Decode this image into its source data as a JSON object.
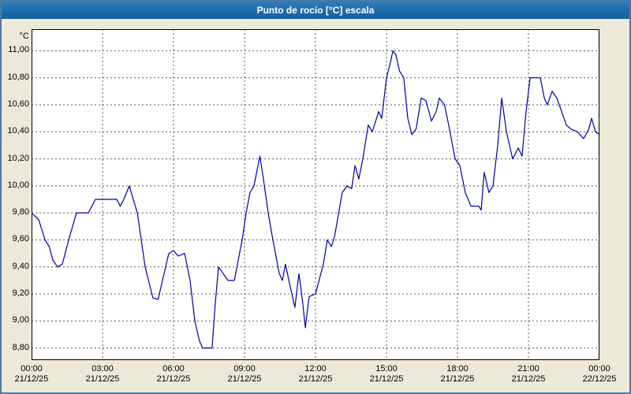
{
  "window": {
    "title": "Punto de rocío [°C] escala"
  },
  "colors": {
    "titlebar": "#11619f",
    "background": "#ece9d8",
    "plot_bg": "#ffffff",
    "grid": "#555555",
    "axis_border": "#000000",
    "tick_text": "#000000"
  },
  "chart_data": {
    "type": "line",
    "title": "Punto de rocío [°C] escala",
    "xlabel": "",
    "ylabel": "°C",
    "ylim": [
      8.71,
      11.16
    ],
    "xlim_hours": [
      0,
      24
    ],
    "grid": true,
    "legend_position": "none",
    "y_ticks": [
      {
        "value": 11.0,
        "label": "11,00"
      },
      {
        "value": 10.8,
        "label": "10,80"
      },
      {
        "value": 10.6,
        "label": "10,60"
      },
      {
        "value": 10.4,
        "label": "10,40"
      },
      {
        "value": 10.2,
        "label": "10,20"
      },
      {
        "value": 10.0,
        "label": "10,00"
      },
      {
        "value": 9.8,
        "label": "9,80"
      },
      {
        "value": 9.6,
        "label": "9,60"
      },
      {
        "value": 9.4,
        "label": "9,40"
      },
      {
        "value": 9.2,
        "label": "9,20"
      },
      {
        "value": 9.0,
        "label": "9,00"
      },
      {
        "value": 8.8,
        "label": "8,80"
      }
    ],
    "x_ticks": [
      {
        "hour": 0,
        "time": "00:00",
        "date": "21/12/25"
      },
      {
        "hour": 3,
        "time": "03:00",
        "date": "21/12/25"
      },
      {
        "hour": 6,
        "time": "06:00",
        "date": "21/12/25"
      },
      {
        "hour": 9,
        "time": "09:00",
        "date": "21/12/25"
      },
      {
        "hour": 12,
        "time": "12:00",
        "date": "21/12/25"
      },
      {
        "hour": 15,
        "time": "15:00",
        "date": "21/12/25"
      },
      {
        "hour": 18,
        "time": "18:00",
        "date": "21/12/25"
      },
      {
        "hour": 21,
        "time": "21:00",
        "date": "21/12/25"
      },
      {
        "hour": 24,
        "time": "00:00",
        "date": "22/12/25"
      }
    ],
    "series": [
      {
        "name": "Punto de rocío [°C]",
        "color": "#0000a0",
        "points_hour_value": [
          [
            0.0,
            9.8
          ],
          [
            0.3,
            9.75
          ],
          [
            0.57,
            9.6
          ],
          [
            0.75,
            9.55
          ],
          [
            0.9,
            9.45
          ],
          [
            1.1,
            9.4
          ],
          [
            1.3,
            9.42
          ],
          [
            1.57,
            9.6
          ],
          [
            1.9,
            9.8
          ],
          [
            2.4,
            9.8
          ],
          [
            2.55,
            9.85
          ],
          [
            2.7,
            9.9
          ],
          [
            3.6,
            9.9
          ],
          [
            3.75,
            9.85
          ],
          [
            3.9,
            9.9
          ],
          [
            4.13,
            10.0
          ],
          [
            4.3,
            9.9
          ],
          [
            4.47,
            9.8
          ],
          [
            4.8,
            9.4
          ],
          [
            5.13,
            9.17
          ],
          [
            5.35,
            9.16
          ],
          [
            5.6,
            9.35
          ],
          [
            5.8,
            9.5
          ],
          [
            6.0,
            9.52
          ],
          [
            6.2,
            9.48
          ],
          [
            6.47,
            9.5
          ],
          [
            6.7,
            9.3
          ],
          [
            6.9,
            9.0
          ],
          [
            7.1,
            8.85
          ],
          [
            7.23,
            8.8
          ],
          [
            7.63,
            8.8
          ],
          [
            7.75,
            9.1
          ],
          [
            7.9,
            9.4
          ],
          [
            8.1,
            9.35
          ],
          [
            8.3,
            9.3
          ],
          [
            8.57,
            9.3
          ],
          [
            8.9,
            9.6
          ],
          [
            9.07,
            9.8
          ],
          [
            9.23,
            9.95
          ],
          [
            9.4,
            10.0
          ],
          [
            9.57,
            10.15
          ],
          [
            9.65,
            10.22
          ],
          [
            9.8,
            10.05
          ],
          [
            10.0,
            9.8
          ],
          [
            10.2,
            9.6
          ],
          [
            10.47,
            9.35
          ],
          [
            10.6,
            9.3
          ],
          [
            10.73,
            9.42
          ],
          [
            10.9,
            9.28
          ],
          [
            11.13,
            9.1
          ],
          [
            11.3,
            9.35
          ],
          [
            11.45,
            9.15
          ],
          [
            11.57,
            8.95
          ],
          [
            11.73,
            9.18
          ],
          [
            12.0,
            9.2
          ],
          [
            12.33,
            9.42
          ],
          [
            12.5,
            9.6
          ],
          [
            12.67,
            9.55
          ],
          [
            12.8,
            9.62
          ],
          [
            13.13,
            9.95
          ],
          [
            13.33,
            10.0
          ],
          [
            13.53,
            9.98
          ],
          [
            13.67,
            10.15
          ],
          [
            13.83,
            10.05
          ],
          [
            14.0,
            10.2
          ],
          [
            14.23,
            10.45
          ],
          [
            14.4,
            10.4
          ],
          [
            14.67,
            10.55
          ],
          [
            14.8,
            10.5
          ],
          [
            15.0,
            10.8
          ],
          [
            15.15,
            10.9
          ],
          [
            15.27,
            11.0
          ],
          [
            15.4,
            10.97
          ],
          [
            15.55,
            10.85
          ],
          [
            15.73,
            10.8
          ],
          [
            15.9,
            10.5
          ],
          [
            16.07,
            10.38
          ],
          [
            16.25,
            10.42
          ],
          [
            16.47,
            10.65
          ],
          [
            16.67,
            10.63
          ],
          [
            16.9,
            10.48
          ],
          [
            17.1,
            10.55
          ],
          [
            17.23,
            10.65
          ],
          [
            17.45,
            10.6
          ],
          [
            17.63,
            10.45
          ],
          [
            17.9,
            10.2
          ],
          [
            18.1,
            10.15
          ],
          [
            18.33,
            9.95
          ],
          [
            18.57,
            9.85
          ],
          [
            18.9,
            9.85
          ],
          [
            19.0,
            9.82
          ],
          [
            19.13,
            10.1
          ],
          [
            19.33,
            9.95
          ],
          [
            19.5,
            10.0
          ],
          [
            19.7,
            10.3
          ],
          [
            19.87,
            10.65
          ],
          [
            20.07,
            10.4
          ],
          [
            20.33,
            10.2
          ],
          [
            20.57,
            10.28
          ],
          [
            20.73,
            10.22
          ],
          [
            20.9,
            10.55
          ],
          [
            21.07,
            10.8
          ],
          [
            21.5,
            10.8
          ],
          [
            21.67,
            10.65
          ],
          [
            21.8,
            10.6
          ],
          [
            22.0,
            10.7
          ],
          [
            22.2,
            10.65
          ],
          [
            22.4,
            10.55
          ],
          [
            22.6,
            10.45
          ],
          [
            22.8,
            10.42
          ],
          [
            23.07,
            10.4
          ],
          [
            23.33,
            10.35
          ],
          [
            23.55,
            10.42
          ],
          [
            23.67,
            10.5
          ],
          [
            23.83,
            10.4
          ],
          [
            24.0,
            10.38
          ]
        ]
      }
    ]
  }
}
